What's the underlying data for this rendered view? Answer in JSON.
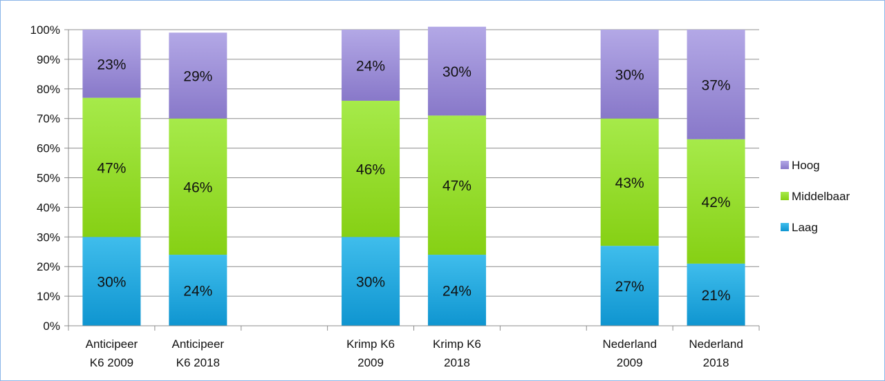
{
  "chart_data": {
    "type": "bar",
    "stacked": true,
    "categories": [
      [
        "Anticipeer",
        "K6 2009"
      ],
      [
        "Anticipeer",
        "K6 2018"
      ],
      [
        "",
        ""
      ],
      [
        "Krimp K6",
        "2009"
      ],
      [
        "Krimp K6",
        "2018"
      ],
      [
        "",
        ""
      ],
      [
        "Nederland",
        "2009"
      ],
      [
        "Nederland",
        "2018"
      ]
    ],
    "series": [
      {
        "name": "Laag",
        "color": "#1ba6dd",
        "values": [
          30,
          24,
          null,
          30,
          24,
          null,
          27,
          21
        ],
        "labels": [
          "30%",
          "24%",
          "",
          "30%",
          "24%",
          "",
          "27%",
          "21%"
        ]
      },
      {
        "name": "Middelbaar",
        "color": "#8ed81e",
        "values": [
          47,
          46,
          null,
          46,
          47,
          null,
          43,
          42
        ],
        "labels": [
          "47%",
          "46%",
          "",
          "46%",
          "47%",
          "",
          "43%",
          "42%"
        ]
      },
      {
        "name": "Hoog",
        "color": "#9b8fd8",
        "values": [
          23,
          29,
          null,
          24,
          30,
          null,
          30,
          37
        ],
        "labels": [
          "23%",
          "29%",
          "",
          "24%",
          "30%",
          "",
          "30%",
          "37%"
        ]
      }
    ],
    "y_ticks": [
      "0%",
      "10%",
      "20%",
      "30%",
      "40%",
      "50%",
      "60%",
      "70%",
      "80%",
      "90%",
      "100%"
    ],
    "ylim": [
      0,
      100
    ],
    "grid": true,
    "legend_position": "right",
    "legend_order": [
      "Hoog",
      "Middelbaar",
      "Laag"
    ],
    "title": "",
    "xlabel": "",
    "ylabel": ""
  }
}
